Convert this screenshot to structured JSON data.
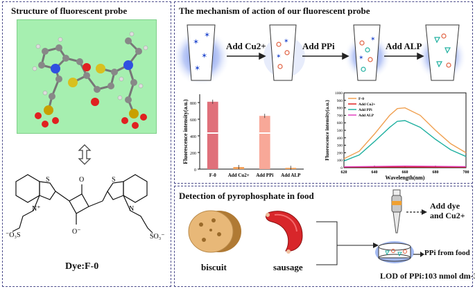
{
  "left_panel": {
    "title": "Structure of fluorescent probe",
    "dye_label": "Dye:F-0"
  },
  "mechanism": {
    "title": "The mechanism of action of our fluorescent probe",
    "steps": [
      "Add Cu2+",
      "Add PPi",
      "Add ALP"
    ]
  },
  "bar_chart": {
    "ylabel": "Fluorescence intensity(a.u.)",
    "bars": [
      {
        "label": "F-0",
        "value": 810,
        "color": "#e0707a"
      },
      {
        "label": "Add Cu2+",
        "value": 25,
        "color": "#f4a35c"
      },
      {
        "label": "Add PPi",
        "value": 640,
        "color": "#f8a898"
      },
      {
        "label": "Add ALP",
        "value": 15,
        "color": "#f4a35c"
      }
    ],
    "yticks": [
      "0",
      "200",
      "400",
      "600",
      "800"
    ]
  },
  "line_chart": {
    "ylabel": "Fluorescence intensity(a.u.)",
    "xlabel": "Wavelength(nm)",
    "xticks": [
      "620",
      "640",
      "660",
      "680",
      "700"
    ],
    "yticks": [
      "0",
      "100",
      "200",
      "300",
      "400",
      "500",
      "600",
      "700",
      "800",
      "900",
      "1000"
    ],
    "legend": [
      {
        "name": "F-0",
        "color": "#f0a050"
      },
      {
        "name": "Add Cu2+",
        "color": "#e02020"
      },
      {
        "name": "Add PPi",
        "color": "#20b0a0"
      },
      {
        "name": "Add ALP",
        "color": "#e040c0"
      }
    ]
  },
  "chart_data": [
    {
      "type": "bar",
      "categories": [
        "F-0",
        "Add Cu2+",
        "Add PPi",
        "Add ALP"
      ],
      "values": [
        810,
        25,
        640,
        15
      ],
      "ylabel": "Fluorescence intensity(a.u.)",
      "ylim": [
        0,
        900
      ]
    },
    {
      "type": "line",
      "xlabel": "Wavelength(nm)",
      "ylabel": "Fluorescence intensity(a.u.)",
      "xlim": [
        620,
        700
      ],
      "ylim": [
        0,
        1000
      ],
      "series": [
        {
          "name": "F-0",
          "x": [
            620,
            630,
            640,
            650,
            655,
            660,
            670,
            680,
            690,
            700
          ],
          "y": [
            120,
            220,
            450,
            700,
            790,
            800,
            700,
            500,
            320,
            200
          ]
        },
        {
          "name": "Add Cu2+",
          "x": [
            620,
            660,
            700
          ],
          "y": [
            8,
            10,
            8
          ]
        },
        {
          "name": "Add PPi",
          "x": [
            620,
            630,
            640,
            650,
            655,
            660,
            670,
            680,
            690,
            700
          ],
          "y": [
            90,
            170,
            350,
            540,
            620,
            630,
            540,
            380,
            240,
            150
          ]
        },
        {
          "name": "Add ALP",
          "x": [
            620,
            660,
            700
          ],
          "y": [
            12,
            22,
            15
          ]
        }
      ]
    }
  ],
  "detection": {
    "title": "Detection of pyrophosphate in food",
    "biscuit": "biscuit",
    "sausage": "sausage",
    "add_dye_line1": "Add dye",
    "add_dye_line2": "and Cu2+",
    "ppi_from_food": "PPi from food",
    "lod_prefix": "LOD of PPi:",
    "lod_value": "103 nmol dm-3"
  }
}
